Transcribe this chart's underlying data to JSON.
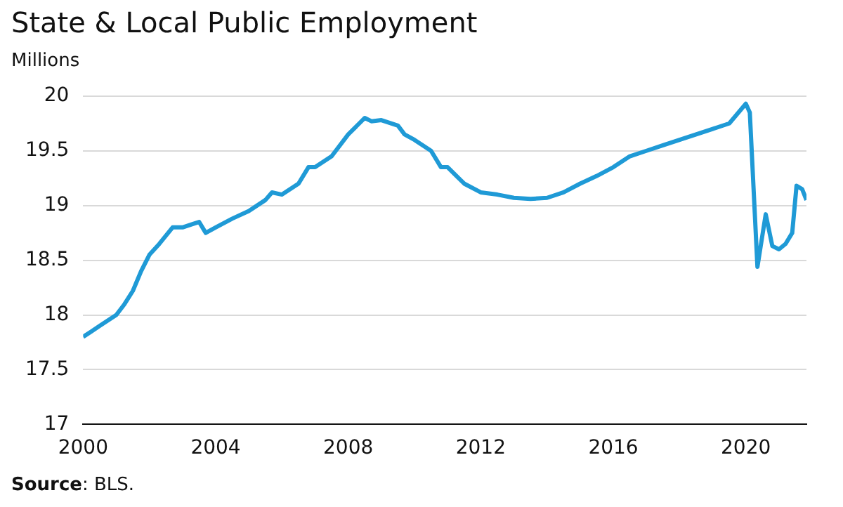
{
  "chart_data": {
    "type": "line",
    "title": "State & Local Public Employment",
    "ylabel": "Millions",
    "x": [
      2000,
      2000.25,
      2000.5,
      2000.75,
      2001,
      2001.25,
      2001.5,
      2001.75,
      2002,
      2002.3,
      2002.7,
      2003,
      2003.3,
      2003.5,
      2003.7,
      2004,
      2004.5,
      2005,
      2005.5,
      2005.7,
      2006,
      2006.5,
      2006.8,
      2007,
      2007.5,
      2008,
      2008.5,
      2008.7,
      2009,
      2009.5,
      2009.7,
      2010,
      2010.5,
      2010.8,
      2011,
      2011.5,
      2012,
      2012.5,
      2013,
      2013.5,
      2014,
      2014.5,
      2015,
      2015.5,
      2016,
      2016.5,
      2017,
      2017.5,
      2018,
      2018.5,
      2019,
      2019.5,
      2020,
      2020.12,
      2020.35,
      2020.6,
      2020.8,
      2021,
      2021.2,
      2021.4,
      2021.53,
      2021.7,
      2021.83
    ],
    "series": [
      {
        "color": "#1f9ad6",
        "values": [
          17.8,
          17.85,
          17.9,
          17.95,
          18.0,
          18.1,
          18.22,
          18.4,
          18.55,
          18.65,
          18.8,
          18.8,
          18.83,
          18.85,
          18.75,
          18.8,
          18.88,
          18.95,
          19.05,
          19.12,
          19.1,
          19.2,
          19.35,
          19.35,
          19.45,
          19.65,
          19.8,
          19.77,
          19.78,
          19.73,
          19.65,
          19.6,
          19.5,
          19.35,
          19.35,
          19.2,
          19.12,
          19.1,
          19.07,
          19.06,
          19.07,
          19.12,
          19.2,
          19.27,
          19.35,
          19.45,
          19.5,
          19.55,
          19.6,
          19.65,
          19.7,
          19.75,
          19.93,
          19.85,
          18.44,
          18.92,
          18.63,
          18.6,
          18.65,
          18.75,
          19.18,
          19.15,
          19.05
        ]
      }
    ],
    "xlim": [
      2000,
      2021.83
    ],
    "xticks": [
      2000,
      2004,
      2008,
      2012,
      2016,
      2020
    ],
    "ylim": [
      17,
      20
    ],
    "yticks": [
      17,
      17.5,
      18,
      18.5,
      19,
      19.5,
      20
    ],
    "grid": "y",
    "legend": false,
    "annotations": [
      "Source: BLS."
    ]
  }
}
